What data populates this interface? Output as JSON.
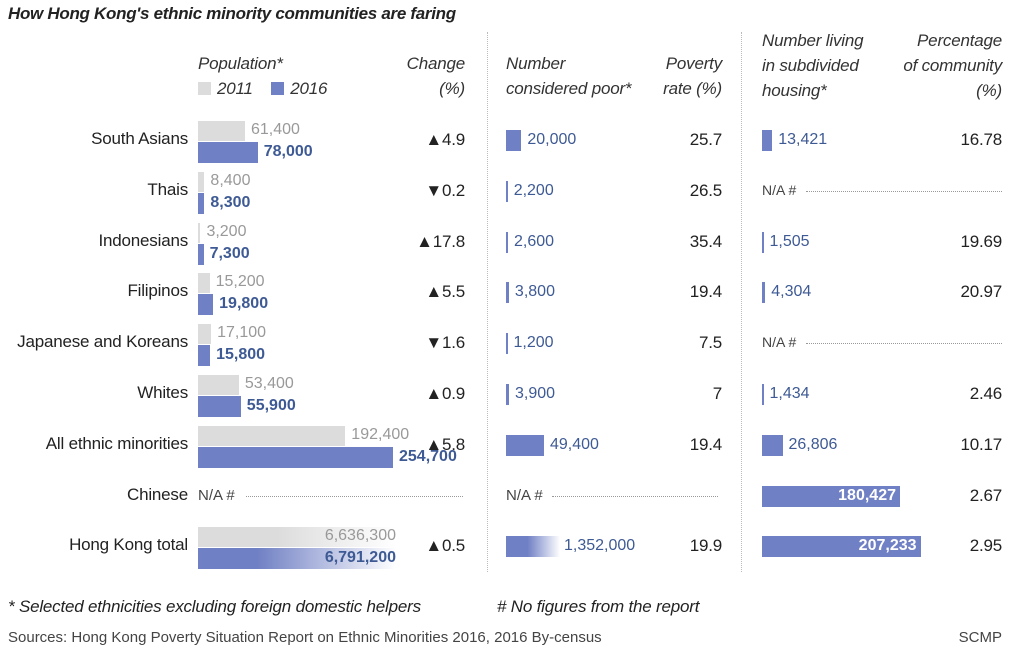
{
  "chart_data": {
    "type": "table",
    "title": "How Hong Kong's ethnic minority communities are faring",
    "colors": {
      "y2011": "#dcdcdc",
      "y2016": "#7080c4",
      "value_text_blue": "#3e5a94"
    },
    "columns": {
      "population": "Population*",
      "legend_2011": "2011",
      "legend_2016": "2016",
      "change": [
        "Change",
        "(%)"
      ],
      "poor": [
        "Number",
        "considered poor*"
      ],
      "poverty_rate": [
        "Poverty",
        "rate (%)"
      ],
      "subdivided": [
        "Number living",
        "in subdivided",
        "housing*"
      ],
      "percentage": [
        "Percentage",
        "of community",
        "(%)"
      ]
    },
    "rows": [
      {
        "group": "South Asians",
        "pop2011": 61400,
        "pop2011_label": "61,400",
        "pop2016": 78000,
        "pop2016_label": "78,000",
        "change_dir": "up",
        "change": "4.9",
        "poor": 20000,
        "poor_label": "20,000",
        "poverty_rate": "25.7",
        "subdivided": 13421,
        "subdivided_label": "13,421",
        "percentage": "16.78"
      },
      {
        "group": "Thais",
        "pop2011": 8400,
        "pop2011_label": "8,400",
        "pop2016": 8300,
        "pop2016_label": "8,300",
        "change_dir": "down",
        "change": "0.2",
        "poor": 2200,
        "poor_label": "2,200",
        "poverty_rate": "26.5",
        "subdivided": null,
        "subdivided_label": "N/A #",
        "percentage": ""
      },
      {
        "group": "Indonesians",
        "pop2011": 3200,
        "pop2011_label": "3,200",
        "pop2016": 7300,
        "pop2016_label": "7,300",
        "change_dir": "up",
        "change": "17.8",
        "poor": 2600,
        "poor_label": "2,600",
        "poverty_rate": "35.4",
        "subdivided": 1505,
        "subdivided_label": "1,505",
        "percentage": "19.69"
      },
      {
        "group": "Filipinos",
        "pop2011": 15200,
        "pop2011_label": "15,200",
        "pop2016": 19800,
        "pop2016_label": "19,800",
        "change_dir": "up",
        "change": "5.5",
        "poor": 3800,
        "poor_label": "3,800",
        "poverty_rate": "19.4",
        "subdivided": 4304,
        "subdivided_label": "4,304",
        "percentage": "20.97"
      },
      {
        "group": "Japanese and Koreans",
        "pop2011": 17100,
        "pop2011_label": "17,100",
        "pop2016": 15800,
        "pop2016_label": "15,800",
        "change_dir": "down",
        "change": "1.6",
        "poor": 1200,
        "poor_label": "1,200",
        "poverty_rate": "7.5",
        "subdivided": null,
        "subdivided_label": "N/A #",
        "percentage": ""
      },
      {
        "group": "Whites",
        "pop2011": 53400,
        "pop2011_label": "53,400",
        "pop2016": 55900,
        "pop2016_label": "55,900",
        "change_dir": "up",
        "change": "0.9",
        "poor": 3900,
        "poor_label": "3,900",
        "poverty_rate": "7",
        "subdivided": 1434,
        "subdivided_label": "1,434",
        "percentage": "2.46"
      },
      {
        "group": "All ethnic minorities",
        "pop2011": 192400,
        "pop2011_label": "192,400",
        "pop2016": 254700,
        "pop2016_label": "254,700",
        "change_dir": "up",
        "change": "5.8",
        "poor": 49400,
        "poor_label": "49,400",
        "poverty_rate": "19.4",
        "subdivided": 26806,
        "subdivided_label": "26,806",
        "percentage": "10.17"
      },
      {
        "group": "Chinese",
        "pop2011": null,
        "pop2011_label": "N/A #",
        "pop2016": null,
        "pop2016_label": "",
        "change_dir": "",
        "change": "",
        "poor": null,
        "poor_label": "N/A #",
        "poverty_rate": "",
        "subdivided": 180427,
        "subdivided_label": "180,427",
        "percentage": "2.67"
      },
      {
        "group": "Hong Kong total",
        "pop2011": 6636300,
        "pop2011_label": "6,636,300",
        "pop2016": 6791200,
        "pop2016_label": "6,791,200",
        "change_dir": "up",
        "change": "0.5",
        "poor": 1352000,
        "poor_label": "1,352,000",
        "poverty_rate": "19.9",
        "subdivided": 207233,
        "subdivided_label": "207,233",
        "percentage": "2.95"
      }
    ],
    "footnotes": [
      "* Selected ethnicities excluding foreign domestic helpers",
      "# No figures from the report"
    ],
    "source": "Sources: Hong Kong Poverty Situation Report on Ethnic Minorities 2016, 2016 By-census",
    "credit": "SCMP"
  }
}
